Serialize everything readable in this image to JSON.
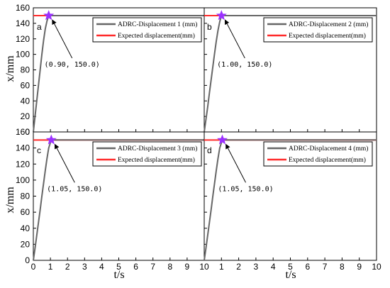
{
  "chart_data": {
    "type": "line",
    "title": "",
    "xlabel": "t/s",
    "ylabel": "x/mm",
    "xlim": [
      0,
      10
    ],
    "ylim": [
      0,
      160
    ],
    "xticks": [
      0,
      1,
      2,
      3,
      4,
      5,
      6,
      7,
      8,
      9,
      10
    ],
    "yticks": [
      0,
      20,
      40,
      60,
      80,
      100,
      120,
      140,
      160
    ],
    "grid": false,
    "legend_position": "top-right",
    "expected_color": "#ff2a2a",
    "response_color": "#666666",
    "marker_color": "#9b30ff",
    "panels": [
      {
        "label": "a",
        "series": [
          {
            "name": "ADRC-Displacement 1 (mm)",
            "x": [
              0,
              0.1,
              0.2,
              0.3,
              0.4,
              0.5,
              0.6,
              0.7,
              0.8,
              0.9,
              10
            ],
            "y": [
              0,
              20,
              40,
              60,
              80,
              100,
              118,
              133,
              143,
              150,
              150
            ]
          },
          {
            "name": "Expected displacement(mm)",
            "x": [
              0,
              10
            ],
            "y": [
              150,
              150
            ]
          }
        ],
        "marker": {
          "x": 0.9,
          "y": 150.0
        },
        "annotation": "(0.90, 150.0)"
      },
      {
        "label": "b",
        "series": [
          {
            "name": "ADRC-Displacement 2 (mm)",
            "x": [
              0,
              0.1,
              0.2,
              0.3,
              0.4,
              0.5,
              0.6,
              0.7,
              0.8,
              0.9,
              1.0,
              10
            ],
            "y": [
              0,
              16,
              32,
              50,
              67,
              84,
              101,
              117,
              131,
              142,
              150,
              150
            ]
          },
          {
            "name": "Expected displacement(mm)",
            "x": [
              0,
              10
            ],
            "y": [
              150,
              150
            ]
          }
        ],
        "marker": {
          "x": 1.0,
          "y": 150.0
        },
        "annotation": "(1.00, 150.0)"
      },
      {
        "label": "c",
        "series": [
          {
            "name": "ADRC-Displacement 3 (mm)",
            "x": [
              0,
              0.1,
              0.2,
              0.3,
              0.4,
              0.5,
              0.6,
              0.7,
              0.8,
              0.9,
              1.05,
              10
            ],
            "y": [
              0,
              15,
              31,
              47,
              63,
              80,
              96,
              112,
              127,
              140,
              150,
              150
            ]
          },
          {
            "name": "Expected displacement(mm)",
            "x": [
              0,
              10
            ],
            "y": [
              150,
              150
            ]
          }
        ],
        "marker": {
          "x": 1.05,
          "y": 150.0
        },
        "annotation": "(1.05, 150.0)"
      },
      {
        "label": "d",
        "series": [
          {
            "name": "ADRC-Displacement 4 (mm)",
            "x": [
              0,
              0.1,
              0.2,
              0.3,
              0.4,
              0.5,
              0.6,
              0.7,
              0.8,
              0.9,
              1.05,
              10
            ],
            "y": [
              0,
              15,
              31,
              47,
              63,
              80,
              96,
              112,
              127,
              140,
              150,
              150
            ]
          },
          {
            "name": "Expected displacement(mm)",
            "x": [
              0,
              10
            ],
            "y": [
              150,
              150
            ]
          }
        ],
        "marker": {
          "x": 1.05,
          "y": 150.0
        },
        "annotation": "(1.05, 150.0)"
      }
    ]
  }
}
